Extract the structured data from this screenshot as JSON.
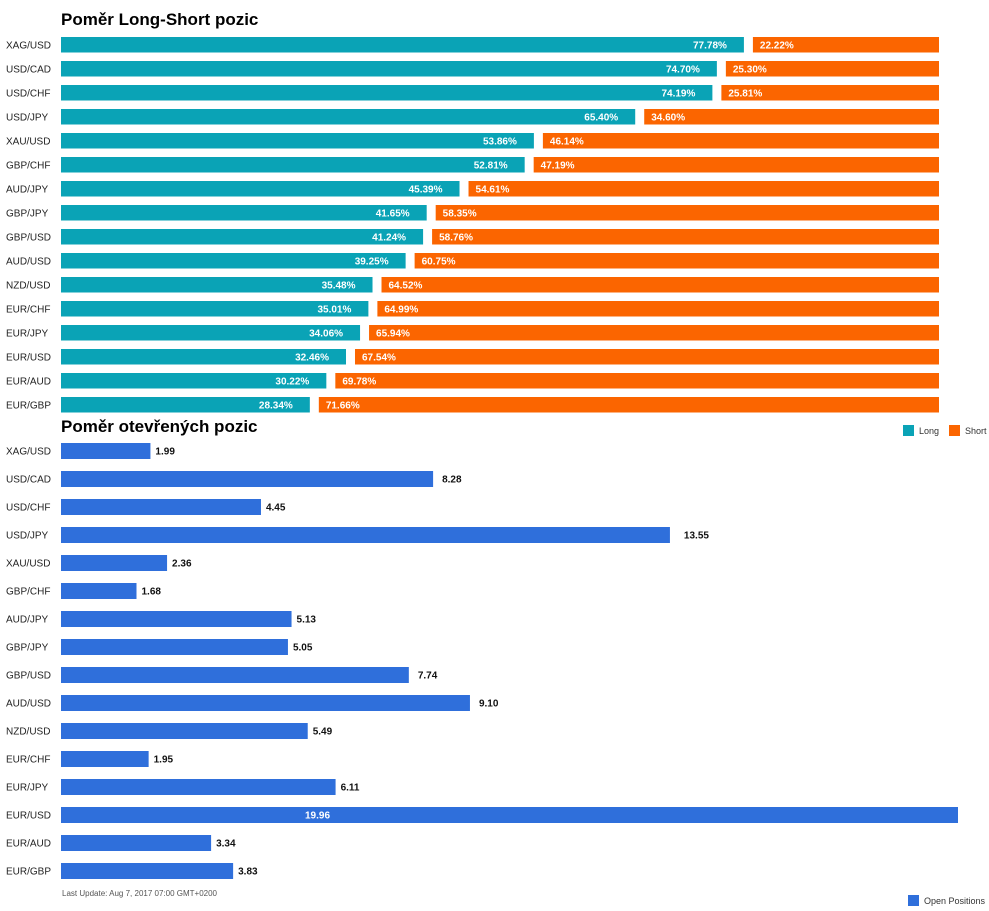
{
  "chart_data": [
    {
      "type": "bar",
      "orientation": "horizontal",
      "stacked": true,
      "percent": true,
      "title": "Poměr Long-Short pozic",
      "categories": [
        "XAG/USD",
        "USD/CAD",
        "USD/CHF",
        "USD/JPY",
        "XAU/USD",
        "GBP/CHF",
        "AUD/JPY",
        "GBP/JPY",
        "GBP/USD",
        "AUD/USD",
        "NZD/USD",
        "EUR/CHF",
        "EUR/JPY",
        "EUR/USD",
        "EUR/AUD",
        "EUR/GBP"
      ],
      "series": [
        {
          "name": "Long",
          "color": "#0aa3b6",
          "values": [
            77.78,
            74.7,
            74.19,
            65.4,
            53.86,
            52.81,
            45.39,
            41.65,
            41.24,
            39.25,
            35.48,
            35.01,
            34.06,
            32.46,
            30.22,
            28.34
          ]
        },
        {
          "name": "Short",
          "color": "#fb6500",
          "values": [
            22.22,
            25.3,
            25.81,
            34.6,
            46.14,
            47.19,
            54.61,
            58.35,
            58.76,
            60.75,
            64.52,
            64.99,
            65.94,
            67.54,
            69.78,
            71.66
          ]
        }
      ],
      "data_labels": {
        "long": [
          "77.78%",
          "74.70%",
          "74.19%",
          "65.40%",
          "53.86%",
          "52.81%",
          "45.39%",
          "41.65%",
          "41.24%",
          "39.25%",
          "35.48%",
          "35.01%",
          "34.06%",
          "32.46%",
          "30.22%",
          "28.34%"
        ],
        "short": [
          "22.22%",
          "25.30%",
          "25.81%",
          "34.60%",
          "46.14%",
          "47.19%",
          "54.61%",
          "58.35%",
          "58.76%",
          "60.75%",
          "64.52%",
          "64.99%",
          "65.94%",
          "67.54%",
          "69.78%",
          "71.66%"
        ]
      },
      "legend": {
        "position": "bottom-right",
        "items": [
          "Long",
          "Short"
        ]
      }
    },
    {
      "type": "bar",
      "orientation": "horizontal",
      "title": "Poměr otevřených pozic",
      "categories": [
        "XAG/USD",
        "USD/CAD",
        "USD/CHF",
        "USD/JPY",
        "XAU/USD",
        "GBP/CHF",
        "AUD/JPY",
        "GBP/JPY",
        "GBP/USD",
        "AUD/USD",
        "NZD/USD",
        "EUR/CHF",
        "EUR/JPY",
        "EUR/USD",
        "EUR/AUD",
        "EUR/GBP"
      ],
      "series": [
        {
          "name": "Open Positions",
          "color": "#2f6fdb",
          "values": [
            1.99,
            8.28,
            4.45,
            13.55,
            2.36,
            1.68,
            5.13,
            5.05,
            7.74,
            9.1,
            5.49,
            1.95,
            6.11,
            19.96,
            3.34,
            3.83
          ]
        }
      ],
      "data_labels": [
        "1.99",
        "8.28",
        "4.45",
        "13.55",
        "2.36",
        "1.68",
        "5.13",
        "5.05",
        "7.74",
        "9.10",
        "5.49",
        "1.95",
        "6.11",
        "19.96",
        "3.34",
        "3.83"
      ],
      "xlim": [
        0,
        19.96
      ],
      "legend": {
        "position": "bottom-right",
        "items": [
          "Open Positions"
        ]
      }
    }
  ],
  "footer": {
    "last_update": "Last Update: Aug 7, 2017 07:00 GMT+0200"
  },
  "colors": {
    "long": "#0aa3b6",
    "short": "#fb6500",
    "open_positions": "#2f6fdb"
  }
}
